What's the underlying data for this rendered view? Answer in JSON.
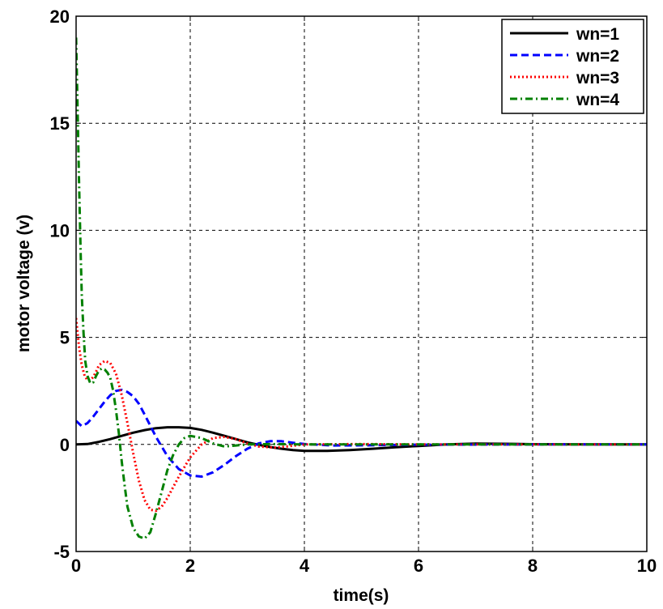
{
  "chart_data": {
    "type": "line",
    "xlabel": "time(s)",
    "ylabel": "motor voltage (v)",
    "xlim": [
      0,
      10
    ],
    "ylim": [
      -5,
      20
    ],
    "xticks": [
      "0",
      "2",
      "4",
      "6",
      "8",
      "10"
    ],
    "yticks": [
      "-5",
      "0",
      "5",
      "10",
      "15",
      "20"
    ],
    "grid": true,
    "legend_position": "top-right",
    "series": [
      {
        "name": "wn=1",
        "style": "solid",
        "color": "#000000",
        "x": [
          0,
          0.2,
          0.4,
          0.6,
          0.8,
          1.0,
          1.2,
          1.4,
          1.6,
          1.8,
          2.0,
          2.2,
          2.4,
          2.6,
          2.8,
          3.0,
          3.2,
          3.4,
          3.6,
          3.8,
          4.0,
          4.4,
          4.8,
          5.2,
          5.6,
          6.0,
          6.5,
          7.0,
          7.5,
          8.0,
          9.0,
          10.0
        ],
        "y": [
          0,
          0.02,
          0.12,
          0.25,
          0.4,
          0.55,
          0.67,
          0.76,
          0.8,
          0.8,
          0.77,
          0.68,
          0.55,
          0.4,
          0.25,
          0.1,
          -0.02,
          -0.12,
          -0.2,
          -0.26,
          -0.3,
          -0.3,
          -0.26,
          -0.2,
          -0.13,
          -0.07,
          0,
          0.04,
          0.03,
          0.01,
          0,
          0
        ]
      },
      {
        "name": "wn=2",
        "style": "dashed",
        "color": "#0000ff",
        "x": [
          0,
          0.1,
          0.2,
          0.3,
          0.4,
          0.5,
          0.6,
          0.7,
          0.8,
          0.9,
          1.0,
          1.1,
          1.2,
          1.4,
          1.6,
          1.8,
          2.0,
          2.2,
          2.4,
          2.6,
          2.8,
          3.0,
          3.2,
          3.4,
          3.6,
          3.8,
          4.0,
          4.5,
          5.0,
          6.0,
          8.0,
          10.0
        ],
        "y": [
          1.1,
          0.85,
          1.0,
          1.3,
          1.65,
          2.0,
          2.3,
          2.5,
          2.55,
          2.45,
          2.25,
          1.9,
          1.4,
          0.35,
          -0.55,
          -1.15,
          -1.45,
          -1.5,
          -1.3,
          -0.95,
          -0.55,
          -0.2,
          0.05,
          0.15,
          0.15,
          0.08,
          0.02,
          -0.05,
          -0.04,
          -0.01,
          0,
          0
        ]
      },
      {
        "name": "wn=3",
        "style": "dotted",
        "color": "#ff0000",
        "x": [
          0,
          0.05,
          0.1,
          0.15,
          0.2,
          0.25,
          0.3,
          0.35,
          0.4,
          0.5,
          0.6,
          0.7,
          0.8,
          0.9,
          1.0,
          1.1,
          1.2,
          1.3,
          1.4,
          1.5,
          1.6,
          1.8,
          2.0,
          2.2,
          2.4,
          2.6,
          2.8,
          3.0,
          3.2,
          3.5,
          4.0,
          5.0,
          6.0,
          8.0,
          10.0
        ],
        "y": [
          5.9,
          4.6,
          3.7,
          3.2,
          3.0,
          3.0,
          3.15,
          3.4,
          3.7,
          3.9,
          3.8,
          3.3,
          2.3,
          1.0,
          -0.4,
          -1.7,
          -2.6,
          -3.05,
          -3.1,
          -2.9,
          -2.5,
          -1.5,
          -0.6,
          0.0,
          0.3,
          0.35,
          0.25,
          0.05,
          -0.1,
          -0.15,
          0.0,
          0.02,
          0,
          0,
          0
        ]
      },
      {
        "name": "wn=4",
        "style": "dashdot",
        "color": "#008000",
        "x": [
          0,
          0.02,
          0.05,
          0.08,
          0.1,
          0.13,
          0.16,
          0.2,
          0.25,
          0.3,
          0.35,
          0.4,
          0.45,
          0.5,
          0.55,
          0.6,
          0.65,
          0.7,
          0.75,
          0.8,
          0.85,
          0.9,
          1.0,
          1.1,
          1.2,
          1.3,
          1.4,
          1.5,
          1.6,
          1.7,
          1.8,
          1.9,
          2.0,
          2.2,
          2.4,
          2.6,
          2.8,
          3.0,
          3.5,
          4.0,
          6.0,
          10.0
        ],
        "y": [
          19.0,
          16.5,
          12.5,
          9.0,
          7.0,
          5.2,
          3.9,
          3.2,
          2.85,
          2.9,
          3.2,
          3.45,
          3.55,
          3.5,
          3.35,
          3.1,
          2.5,
          1.6,
          0.5,
          -0.8,
          -1.9,
          -2.9,
          -3.9,
          -4.3,
          -4.4,
          -4.1,
          -3.2,
          -2.2,
          -1.2,
          -0.5,
          0.0,
          0.3,
          0.4,
          0.3,
          0.05,
          -0.1,
          -0.05,
          0.0,
          0.02,
          0,
          0,
          0
        ]
      }
    ]
  }
}
